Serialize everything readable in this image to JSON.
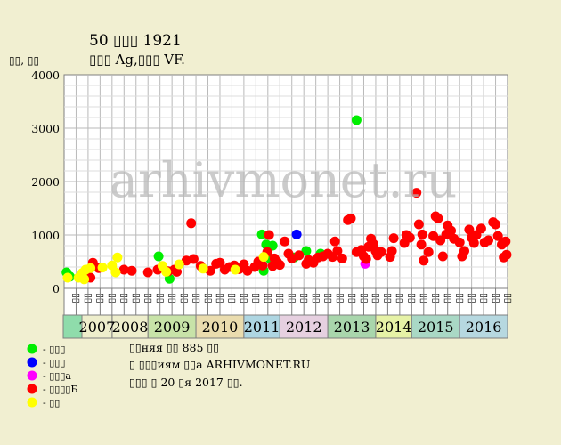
{
  "header": {
    "title": "50 ▯▯▯ 1921",
    "subtitle": "▯▯▯ Ag,▯▯▯ VF."
  },
  "footer": {
    "line1": "▯▯няя ▯▯ 885 ▯▯",
    "line2": "▯ ▯▯▯иям ▯▯а ARHIVMONET.RU",
    "line3": "▯▯▯ ▯ 20 ▯я 2017 ▯▯."
  },
  "watermark": "arhivmonet.ru",
  "colors": {
    "background": "#f1efd1",
    "plot_bg": "#ffffff",
    "grid": "#b9b9b9",
    "green": "#00ee00",
    "blue": "#0000ff",
    "magenta": "#ff00ff",
    "red": "#ff0000",
    "yellow": "#ffff00"
  },
  "chart_data": {
    "type": "scatter",
    "ylabel": "▯▯, ▯▯",
    "ylim": [
      0,
      4000
    ],
    "yticks": [
      0,
      1000,
      2000,
      3000,
      4000
    ],
    "grid": true,
    "years": [
      {
        "label": "2007",
        "q": [
          "▯▯",
          "▯▯",
          "▯▯",
          "▯▯"
        ],
        "color": "#cfe8c2",
        "labelColor": "#eeeecc"
      },
      {
        "label": "2008",
        "q": [
          "▯▯",
          "▯▯",
          "▯▯"
        ],
        "color": "#eeeecc",
        "labelColor": "#eeeecc"
      },
      {
        "label": "2009",
        "q": [
          "▯▯",
          "▯▯",
          "▯▯",
          "▯▯"
        ],
        "color": "#c8e3a8",
        "labelColor": "#c8e3a8"
      },
      {
        "label": "2010",
        "q": [
          "▯▯",
          "▯▯",
          "▯▯",
          "▯▯"
        ],
        "color": "#eadcae",
        "labelColor": "#eadcae"
      },
      {
        "label": "2011",
        "q": [
          "▯▯",
          "▯▯",
          "▯▯"
        ],
        "color": "#aed6e2",
        "labelColor": "#aed6e2"
      },
      {
        "label": "2012",
        "q": [
          "▯▯",
          "▯▯",
          "▯▯",
          "▯▯"
        ],
        "color": "#e6d0e0",
        "labelColor": "#e6d0e0"
      },
      {
        "label": "2013",
        "q": [
          "▯▯",
          "▯▯",
          "▯▯",
          "▯▯"
        ],
        "color": "#a9d6ac",
        "labelColor": "#a9d6ac"
      },
      {
        "label": "2014",
        "q": [
          "▯▯",
          "▯▯",
          "▯▯"
        ],
        "color": "#e6f2a6",
        "labelColor": "#e6f2a6"
      },
      {
        "label": "2015",
        "q": [
          "▯▯",
          "▯▯",
          "▯▯",
          "▯▯"
        ],
        "color": "#a9d8c5",
        "labelColor": "#a9d8c5"
      },
      {
        "label": "2016",
        "q": [
          "▯▯",
          "▯▯",
          "▯▯",
          "▯▯"
        ],
        "color": "#b6d8e0",
        "labelColor": "#b6d8e0"
      }
    ],
    "series": [
      {
        "name": "- ▯▯▯",
        "color": "#00ee00",
        "points": [
          [
            2007.05,
            300
          ],
          [
            2007.12,
            220
          ],
          [
            2009.22,
            600
          ],
          [
            2009.45,
            180
          ],
          [
            2011.5,
            1010
          ],
          [
            2011.62,
            820
          ],
          [
            2011.55,
            330
          ],
          [
            2011.8,
            800
          ],
          [
            2011.72,
            560
          ],
          [
            2012.3,
            580
          ],
          [
            2012.55,
            700
          ],
          [
            2012.85,
            650
          ],
          [
            2013.6,
            3150
          ]
        ]
      },
      {
        "name": "- ▯▯▯",
        "color": "#0000ff",
        "points": [
          [
            2012.35,
            1010
          ]
        ]
      },
      {
        "name": "- ▯▯▯а",
        "color": "#ff00ff",
        "points": [
          [
            2013.78,
            460
          ]
        ]
      },
      {
        "name": "- ▯▯▯▯Б",
        "color": "#ff0000",
        "points": [
          [
            2007.55,
            200
          ],
          [
            2007.6,
            480
          ],
          [
            2007.72,
            380
          ],
          [
            2008.33,
            350
          ],
          [
            2008.55,
            330
          ],
          [
            2009.0,
            300
          ],
          [
            2009.2,
            350
          ],
          [
            2009.42,
            320
          ],
          [
            2009.55,
            350
          ],
          [
            2009.6,
            310
          ],
          [
            2009.8,
            520
          ],
          [
            2009.9,
            1220
          ],
          [
            2009.95,
            550
          ],
          [
            2010.1,
            420
          ],
          [
            2010.3,
            330
          ],
          [
            2010.42,
            460
          ],
          [
            2010.5,
            480
          ],
          [
            2010.6,
            350
          ],
          [
            2010.7,
            400
          ],
          [
            2010.8,
            430
          ],
          [
            2010.9,
            360
          ],
          [
            2011.0,
            450
          ],
          [
            2011.1,
            330
          ],
          [
            2011.3,
            400
          ],
          [
            2011.4,
            500
          ],
          [
            2011.52,
            430
          ],
          [
            2011.65,
            680
          ],
          [
            2011.7,
            1000
          ],
          [
            2011.8,
            420
          ],
          [
            2011.85,
            560
          ],
          [
            2011.92,
            500
          ],
          [
            2012.0,
            440
          ],
          [
            2012.1,
            880
          ],
          [
            2012.18,
            650
          ],
          [
            2012.25,
            560
          ],
          [
            2012.4,
            620
          ],
          [
            2012.55,
            460
          ],
          [
            2012.6,
            530
          ],
          [
            2012.7,
            480
          ],
          [
            2012.8,
            580
          ],
          [
            2012.9,
            600
          ],
          [
            2013.0,
            650
          ],
          [
            2013.1,
            590
          ],
          [
            2013.15,
            880
          ],
          [
            2013.2,
            700
          ],
          [
            2013.3,
            560
          ],
          [
            2013.42,
            1280
          ],
          [
            2013.48,
            1310
          ],
          [
            2013.6,
            680
          ],
          [
            2013.7,
            720
          ],
          [
            2013.75,
            600
          ],
          [
            2013.8,
            550
          ],
          [
            2013.85,
            780
          ],
          [
            2013.9,
            930
          ],
          [
            2013.95,
            830
          ],
          [
            2014.0,
            700
          ],
          [
            2014.05,
            620
          ],
          [
            2014.15,
            680
          ],
          [
            2014.4,
            590
          ],
          [
            2014.45,
            700
          ],
          [
            2014.5,
            940
          ],
          [
            2014.8,
            850
          ],
          [
            2014.85,
            1000
          ],
          [
            2014.95,
            950
          ],
          [
            2015.1,
            1790
          ],
          [
            2015.15,
            1200
          ],
          [
            2015.2,
            820
          ],
          [
            2015.22,
            1010
          ],
          [
            2015.25,
            520
          ],
          [
            2015.35,
            680
          ],
          [
            2015.45,
            980
          ],
          [
            2015.5,
            1350
          ],
          [
            2015.55,
            1310
          ],
          [
            2015.6,
            900
          ],
          [
            2015.65,
            600
          ],
          [
            2015.72,
            1010
          ],
          [
            2015.75,
            1180
          ],
          [
            2015.82,
            1080
          ],
          [
            2015.88,
            930
          ],
          [
            2016.0,
            860
          ],
          [
            2016.05,
            600
          ],
          [
            2016.1,
            700
          ],
          [
            2016.2,
            1100
          ],
          [
            2016.25,
            950
          ],
          [
            2016.3,
            850
          ],
          [
            2016.35,
            1000
          ],
          [
            2016.45,
            1120
          ],
          [
            2016.52,
            860
          ],
          [
            2016.6,
            900
          ],
          [
            2016.7,
            1240
          ],
          [
            2016.75,
            1200
          ],
          [
            2016.8,
            980
          ],
          [
            2016.88,
            820
          ],
          [
            2016.92,
            580
          ],
          [
            2016.96,
            880
          ],
          [
            2016.98,
            630
          ]
        ]
      },
      {
        "name": "- ▯▯",
        "color": "#ffff00",
        "points": [
          [
            2006.95,
            200
          ],
          [
            2007.3,
            200
          ],
          [
            2007.38,
            290
          ],
          [
            2007.42,
            170
          ],
          [
            2007.45,
            350
          ],
          [
            2007.55,
            380
          ],
          [
            2007.8,
            390
          ],
          [
            2008.0,
            430
          ],
          [
            2008.1,
            300
          ],
          [
            2008.15,
            580
          ],
          [
            2009.3,
            420
          ],
          [
            2009.38,
            310
          ],
          [
            2009.65,
            450
          ],
          [
            2010.15,
            370
          ],
          [
            2010.82,
            350
          ],
          [
            2011.55,
            590
          ]
        ]
      }
    ]
  }
}
